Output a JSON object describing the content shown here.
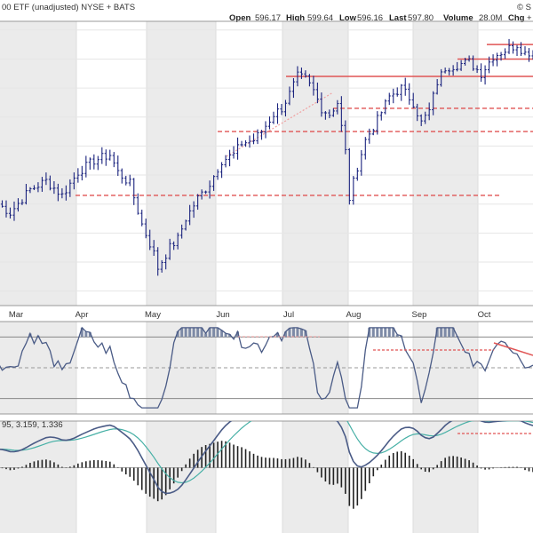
{
  "header": {
    "left_text": "00 ETF (unadjusted) NYSE + BATS",
    "logo_text": "© S",
    "right_stats": [
      {
        "label": "Open",
        "value": "596.17"
      },
      {
        "label": "High",
        "value": "599.64"
      },
      {
        "label": "Low",
        "value": "596.16"
      },
      {
        "label": "Last",
        "value": "597.80"
      },
      {
        "label": "Volume",
        "value": "28.0M"
      },
      {
        "label": "Chg",
        "value": "+"
      }
    ],
    "corner_label": "0"
  },
  "macd_legend": "95, 3.159, 1.336",
  "colors": {
    "bar": "#1a237e",
    "resistance": "#e05555",
    "macd": "#4a5b86",
    "signal": "#47b0a6",
    "histogram": "#222222",
    "rsi_line": "#4a5b86",
    "rsi_fill": "#7d8aa6",
    "band_shade": "#ebebeb",
    "grid": "#dcdcdc"
  },
  "chart_data": {
    "type": "ohlc",
    "x_labels": [
      "Mar",
      "Apr",
      "May",
      "Jun",
      "Jul",
      "Aug",
      "Sep",
      "Oct"
    ],
    "series": [
      {
        "type": "price",
        "ohlc_close_path": [
          [
            0,
            545
          ],
          [
            3,
            542
          ],
          [
            8,
            550
          ],
          [
            12,
            553
          ],
          [
            16,
            548
          ],
          [
            20,
            556
          ],
          [
            24,
            560
          ],
          [
            28,
            562
          ],
          [
            30,
            556
          ],
          [
            33,
            552
          ],
          [
            36,
            538
          ],
          [
            39,
            528
          ],
          [
            40,
            523
          ],
          [
            43,
            530
          ],
          [
            45,
            533
          ],
          [
            47,
            540
          ],
          [
            50,
            547
          ],
          [
            53,
            552
          ],
          [
            56,
            560
          ],
          [
            59,
            562
          ],
          [
            61,
            566
          ],
          [
            64,
            567
          ],
          [
            66,
            570
          ],
          [
            69,
            576
          ],
          [
            71,
            578
          ],
          [
            73,
            583
          ],
          [
            75,
            589
          ],
          [
            77,
            588
          ],
          [
            79,
            584
          ],
          [
            81,
            578
          ],
          [
            83,
            576
          ],
          [
            85,
            580
          ],
          [
            87,
            563
          ],
          [
            88,
            547
          ],
          [
            90,
            558
          ],
          [
            92,
            567
          ],
          [
            95,
            574
          ],
          [
            98,
            582
          ],
          [
            101,
            585
          ],
          [
            104,
            580
          ],
          [
            106,
            573
          ],
          [
            108,
            577
          ],
          [
            110,
            587
          ],
          [
            112,
            592
          ],
          [
            115,
            593
          ],
          [
            118,
            594
          ],
          [
            121,
            590
          ],
          [
            124,
            596
          ],
          [
            127,
            598
          ],
          [
            130,
            600
          ],
          [
            132,
            597
          ],
          [
            134,
            597.8
          ]
        ]
      }
    ],
    "horizontal_lines": [
      {
        "level": 548,
        "style": "dashed"
      },
      {
        "level": 570,
        "style": "dashed"
      },
      {
        "level": 578,
        "style": "dashed"
      },
      {
        "level": 589,
        "style": "solid"
      },
      {
        "level": 595,
        "style": "solid"
      },
      {
        "level": 600,
        "style": "solid"
      }
    ],
    "y_range": [
      510,
      608
    ],
    "rsi_range": [
      20,
      80
    ],
    "macd_range": [
      -14,
      10
    ]
  }
}
